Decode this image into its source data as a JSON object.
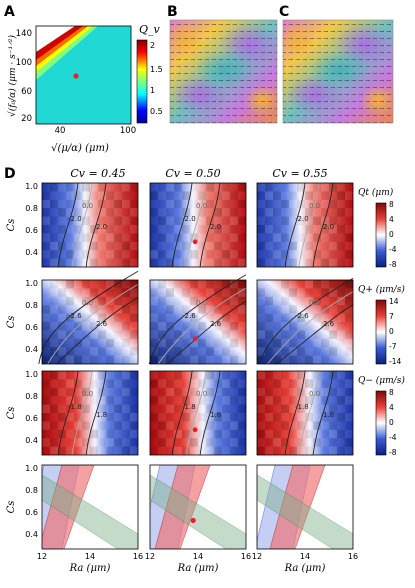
{
  "panels": {
    "A": "A",
    "B": "B",
    "C": "C",
    "D": "D"
  },
  "panelA": {
    "colorbar_title": "Q_v",
    "colorbar_ticks": [
      "2",
      "1.5",
      "1",
      "0.5"
    ],
    "y_ticks": [
      "140",
      "100",
      "60",
      "20"
    ],
    "x_ticks": [
      "40",
      "100"
    ],
    "ylabel": "√(f₀/α) (μm · s⁻¹ᐟ²)",
    "xlabel": "√(μ/α) (μm)"
  },
  "panelD": {
    "col_titles": [
      "Cv = 0.45",
      "Cv = 0.50",
      "Cv = 0.55"
    ],
    "y_ticks": [
      "1.0",
      "0.8",
      "0.6",
      "0.4"
    ],
    "ylabel": "Cs",
    "xlabel": "Ra (μm)",
    "x_ticks": [
      "12",
      "14",
      "16"
    ],
    "row1": {
      "title": "Qt (μm)",
      "cb_ticks": [
        "8",
        "4",
        "0",
        "-4",
        "-8"
      ],
      "contours": [
        "-2.0",
        "0.0",
        "2.0"
      ]
    },
    "row2": {
      "title": "Q+ (μm/s)",
      "cb_ticks": [
        "14",
        "7",
        "0",
        "-7",
        "-14"
      ],
      "contours": [
        "-2.6",
        "0.0",
        "2.6"
      ]
    },
    "row3": {
      "title": "Q− (μm/s)",
      "cb_ticks": [
        "8",
        "4",
        "0",
        "-4",
        "-8"
      ],
      "contours": [
        "-1.8",
        "0.0",
        "1.8"
      ]
    }
  },
  "colors": {
    "red": "#d7191c",
    "blue": "#1a3cb8",
    "green": "#3a8a4f",
    "marker": "#e8202a"
  }
}
